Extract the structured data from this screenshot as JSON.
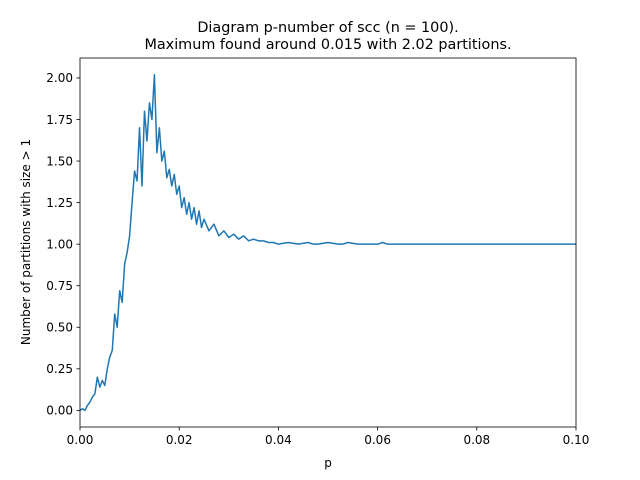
{
  "chart_data": {
    "type": "line",
    "title": "Diagram p-number of scc (n = 100).",
    "subtitle": "Maximum found around 0.015 with 2.02 partitions.",
    "xlabel": "p",
    "ylabel": "Number of partitions with size > 1",
    "xlim": [
      0.0,
      0.1
    ],
    "ylim": [
      -0.1,
      2.12
    ],
    "xticks": [
      "0.00",
      "0.02",
      "0.04",
      "0.06",
      "0.08",
      "0.10"
    ],
    "xtick_values": [
      0.0,
      0.02,
      0.04,
      0.06,
      0.08,
      0.1
    ],
    "yticks": [
      "0.00",
      "0.25",
      "0.50",
      "0.75",
      "1.00",
      "1.25",
      "1.50",
      "1.75",
      "2.00"
    ],
    "ytick_values": [
      0.0,
      0.25,
      0.5,
      0.75,
      1.0,
      1.25,
      1.5,
      1.75,
      2.0
    ],
    "grid": false,
    "series": [
      {
        "color": "#1f77b4",
        "x": [
          0.0,
          0.0005,
          0.001,
          0.0015,
          0.002,
          0.0025,
          0.003,
          0.0035,
          0.004,
          0.0045,
          0.005,
          0.0055,
          0.006,
          0.0065,
          0.007,
          0.0075,
          0.008,
          0.0085,
          0.009,
          0.0095,
          0.01,
          0.0105,
          0.011,
          0.0115,
          0.012,
          0.0125,
          0.013,
          0.0135,
          0.014,
          0.0145,
          0.015,
          0.0155,
          0.016,
          0.0165,
          0.017,
          0.0175,
          0.018,
          0.0185,
          0.019,
          0.0195,
          0.02,
          0.0205,
          0.021,
          0.0215,
          0.022,
          0.0225,
          0.023,
          0.0235,
          0.024,
          0.0245,
          0.025,
          0.026,
          0.027,
          0.028,
          0.029,
          0.03,
          0.031,
          0.032,
          0.033,
          0.034,
          0.035,
          0.036,
          0.037,
          0.038,
          0.039,
          0.04,
          0.042,
          0.044,
          0.046,
          0.047,
          0.048,
          0.05,
          0.052,
          0.053,
          0.054,
          0.056,
          0.058,
          0.06,
          0.061,
          0.062,
          0.065,
          0.07,
          0.08,
          0.09,
          0.1
        ],
        "y": [
          0.0,
          0.01,
          0.0,
          0.03,
          0.05,
          0.08,
          0.1,
          0.2,
          0.14,
          0.18,
          0.15,
          0.25,
          0.32,
          0.36,
          0.58,
          0.5,
          0.72,
          0.65,
          0.88,
          0.95,
          1.05,
          1.25,
          1.44,
          1.38,
          1.7,
          1.35,
          1.8,
          1.62,
          1.85,
          1.75,
          2.02,
          1.55,
          1.7,
          1.5,
          1.56,
          1.4,
          1.45,
          1.35,
          1.42,
          1.3,
          1.35,
          1.22,
          1.28,
          1.18,
          1.25,
          1.15,
          1.22,
          1.12,
          1.2,
          1.1,
          1.15,
          1.08,
          1.12,
          1.05,
          1.08,
          1.04,
          1.06,
          1.03,
          1.05,
          1.02,
          1.03,
          1.02,
          1.02,
          1.01,
          1.01,
          1.0,
          1.01,
          1.0,
          1.01,
          1.0,
          1.0,
          1.01,
          1.0,
          1.0,
          1.01,
          1.0,
          1.0,
          1.0,
          1.01,
          1.0,
          1.0,
          1.0,
          1.0,
          1.0,
          1.0
        ]
      }
    ]
  }
}
